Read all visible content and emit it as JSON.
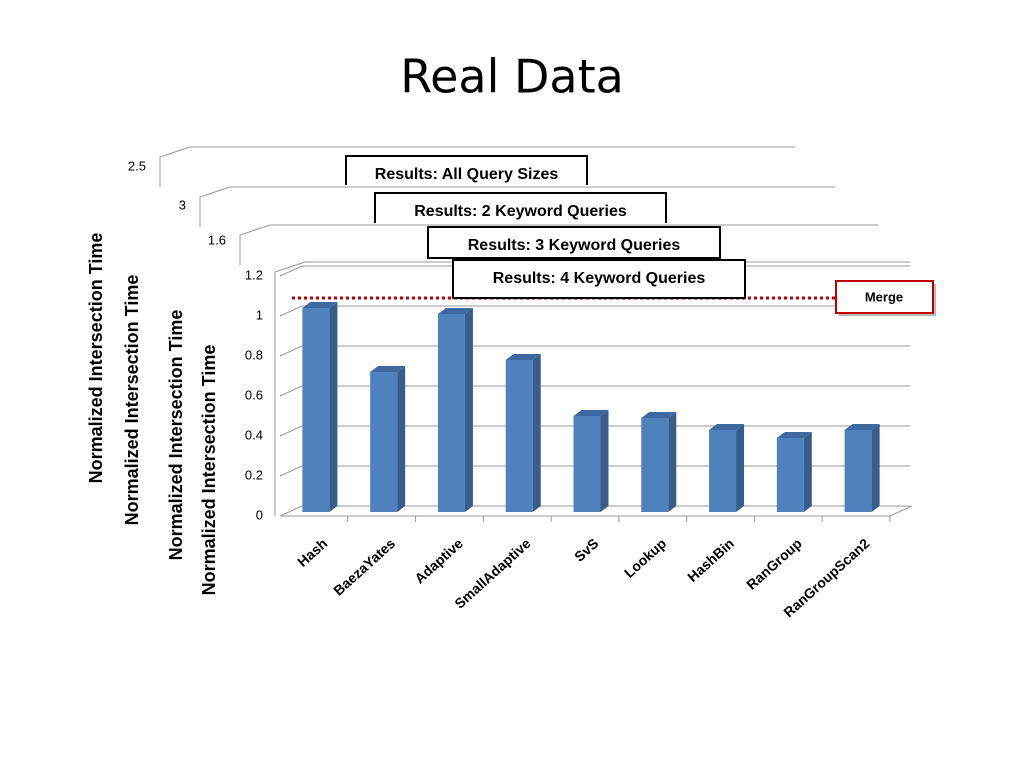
{
  "slide_title": "Real Data",
  "chart_data": [
    {
      "type": "bar",
      "title": "Results: All Query Sizes",
      "y_label": "Normalized  Intersection Time",
      "yticks": [
        2.5
      ]
    },
    {
      "type": "bar",
      "title": "Results: 2 Keyword Queries",
      "y_label": "Normalized  Intersection  Time",
      "yticks": [
        3
      ]
    },
    {
      "type": "bar",
      "title": "Results: 3 Keyword Queries",
      "y_label": "Normalized  Intersection Time",
      "yticks": [
        1.6
      ]
    },
    {
      "type": "bar",
      "title": "Results: 4 Keyword Queries",
      "y_label": "Normalized  Intersection Time",
      "categories": [
        "Hash",
        "BaezaYates",
        "Adaptive",
        "SmallAdaptive",
        "SvS",
        "Lookup",
        "HashBin",
        "RanGroup",
        "RanGroupScan2"
      ],
      "values": [
        1.02,
        0.7,
        0.99,
        0.76,
        0.48,
        0.47,
        0.41,
        0.37,
        0.41
      ],
      "color": "#4f81bd",
      "ylim": [
        0,
        1.2
      ],
      "yticks": [
        0,
        0.2,
        0.4,
        0.6,
        0.8,
        1,
        1.2
      ],
      "grid": true,
      "reference_line": {
        "label": "Merge",
        "value": 1.07,
        "color": "#c00000"
      }
    }
  ]
}
